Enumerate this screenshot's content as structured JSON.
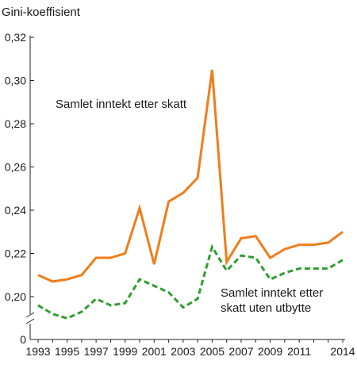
{
  "chart_data": {
    "type": "line",
    "ylabel": "Gini-koeffisient",
    "x": [
      1993,
      1994,
      1995,
      1996,
      1997,
      1998,
      1999,
      2000,
      2001,
      2002,
      2003,
      2004,
      2005,
      2006,
      2007,
      2008,
      2009,
      2010,
      2011,
      2012,
      2013,
      2014
    ],
    "x_tick_labels": [
      "1993",
      "1995",
      "1997",
      "1999",
      "2001",
      "2003",
      "2005",
      "2007",
      "2009",
      "2011",
      "2014"
    ],
    "y_tick_labels": [
      "0",
      "0,20",
      "0,22",
      "0,24",
      "0,26",
      "0,28",
      "0,30",
      "0,32"
    ],
    "ylim": [
      0.19,
      0.32
    ],
    "y_axis_break": true,
    "grid": false,
    "series": [
      {
        "name": "Samlet inntekt etter skatt",
        "color": "#f07d1a",
        "style": "solid",
        "values": [
          0.21,
          0.207,
          0.208,
          0.21,
          0.218,
          0.218,
          0.22,
          0.241,
          0.215,
          0.244,
          0.248,
          0.255,
          0.305,
          0.216,
          0.227,
          0.228,
          0.218,
          0.222,
          0.224,
          0.224,
          0.225,
          0.23
        ]
      },
      {
        "name": "Samlet inntekt etter skatt uten utbytte",
        "name_lines": [
          "Samlet inntekt etter",
          "skatt uten utbytte"
        ],
        "color": "#2e9e2e",
        "style": "dashed",
        "values": [
          0.196,
          0.192,
          0.19,
          0.193,
          0.199,
          0.196,
          0.197,
          0.208,
          0.205,
          0.202,
          0.195,
          0.199,
          0.223,
          0.212,
          0.219,
          0.218,
          0.208,
          0.211,
          0.213,
          0.213,
          0.213,
          0.217
        ]
      }
    ]
  }
}
